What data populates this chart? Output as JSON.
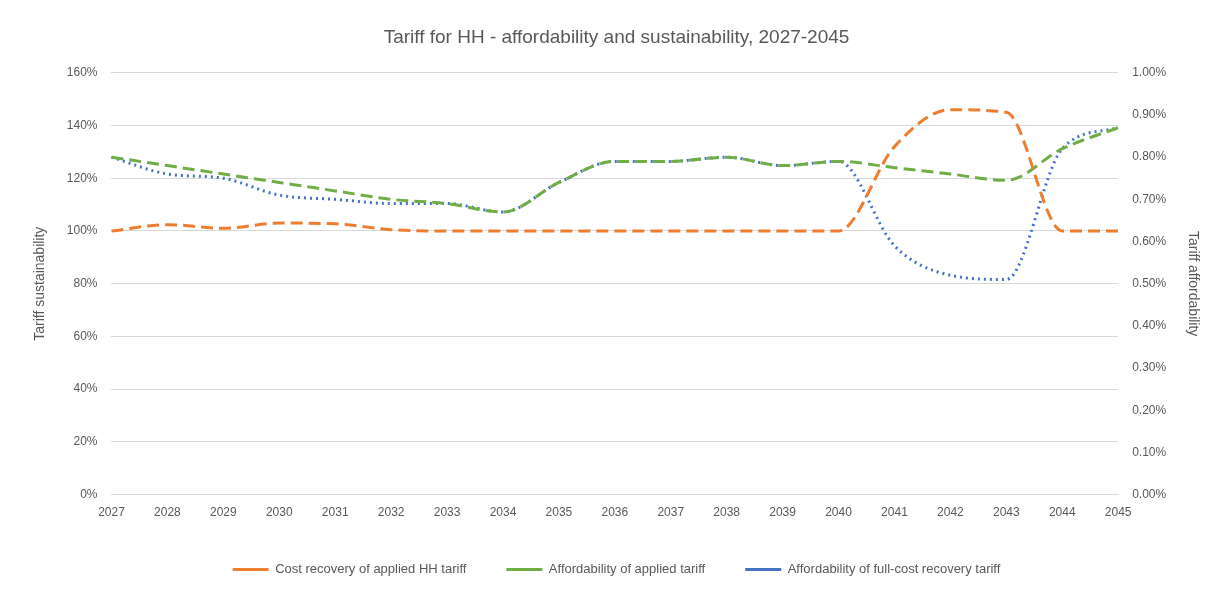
{
  "chart_data": {
    "type": "line",
    "title": "Tariff for HH - affordability and sustainability, 2027-2045",
    "ylabel": "Tariff sustainability",
    "y2label": "Tariff affordability",
    "categories": [
      "2027",
      "2028",
      "2029",
      "2030",
      "2031",
      "2032",
      "2033",
      "2034",
      "2035",
      "2036",
      "2037",
      "2038",
      "2039",
      "2040",
      "2041",
      "2042",
      "2043",
      "2044",
      "2045"
    ],
    "series": [
      {
        "name": "Cost recovery of applied HH tariff",
        "color": "#ed7d31",
        "line_style": "dashed",
        "values": [
          100,
          102.4,
          101,
          103,
          102.7,
          100.5,
          100,
          100,
          100,
          100,
          100,
          100,
          100,
          100,
          132,
          146,
          145,
          100,
          100
        ]
      },
      {
        "name": "Affordability of applied tariff",
        "color": "#70ad47",
        "line_style": "dashed",
        "axis": "y2",
        "values": [
          0.8,
          0.78,
          0.76,
          0.74,
          0.72,
          0.7,
          0.69,
          0.67,
          0.74,
          0.79,
          0.79,
          0.8,
          0.78,
          0.79,
          0.775,
          0.76,
          0.745,
          0.82,
          0.87
        ]
      },
      {
        "name": "Affordability of full-cost recovery tariff",
        "color": "#4472c4",
        "line_style": "dotted",
        "axis": "y2",
        "values": [
          0.8,
          0.76,
          0.75,
          0.71,
          0.7,
          0.69,
          0.69,
          0.67,
          0.74,
          0.79,
          0.79,
          0.8,
          0.78,
          0.79,
          0.59,
          0.52,
          0.51,
          0.82,
          0.87
        ]
      }
    ],
    "ylim": [
      0,
      160
    ],
    "yticks": [
      {
        "value": 0,
        "label": "0%"
      },
      {
        "value": 20,
        "label": "20%"
      },
      {
        "value": 40,
        "label": "40%"
      },
      {
        "value": 60,
        "label": "60%"
      },
      {
        "value": 80,
        "label": "80%"
      },
      {
        "value": 100,
        "label": "100%"
      },
      {
        "value": 120,
        "label": "120%"
      },
      {
        "value": 140,
        "label": "140%"
      },
      {
        "value": 160,
        "label": "160%"
      }
    ],
    "y2lim": [
      0,
      1
    ],
    "y2ticks": [
      {
        "value": 0,
        "label": "0.00%"
      },
      {
        "value": 0.1,
        "label": "0.10%"
      },
      {
        "value": 0.2,
        "label": "0.20%"
      },
      {
        "value": 0.3,
        "label": "0.30%"
      },
      {
        "value": 0.4,
        "label": "0.40%"
      },
      {
        "value": 0.5,
        "label": "0.50%"
      },
      {
        "value": 0.6,
        "label": "0.60%"
      },
      {
        "value": 0.7,
        "label": "0.70%"
      },
      {
        "value": 0.8,
        "label": "0.80%"
      },
      {
        "value": 0.9,
        "label": "0.90%"
      },
      {
        "value": 1,
        "label": "1.00%"
      }
    ],
    "grid": "y",
    "legend": "bottom",
    "marker": "none"
  }
}
